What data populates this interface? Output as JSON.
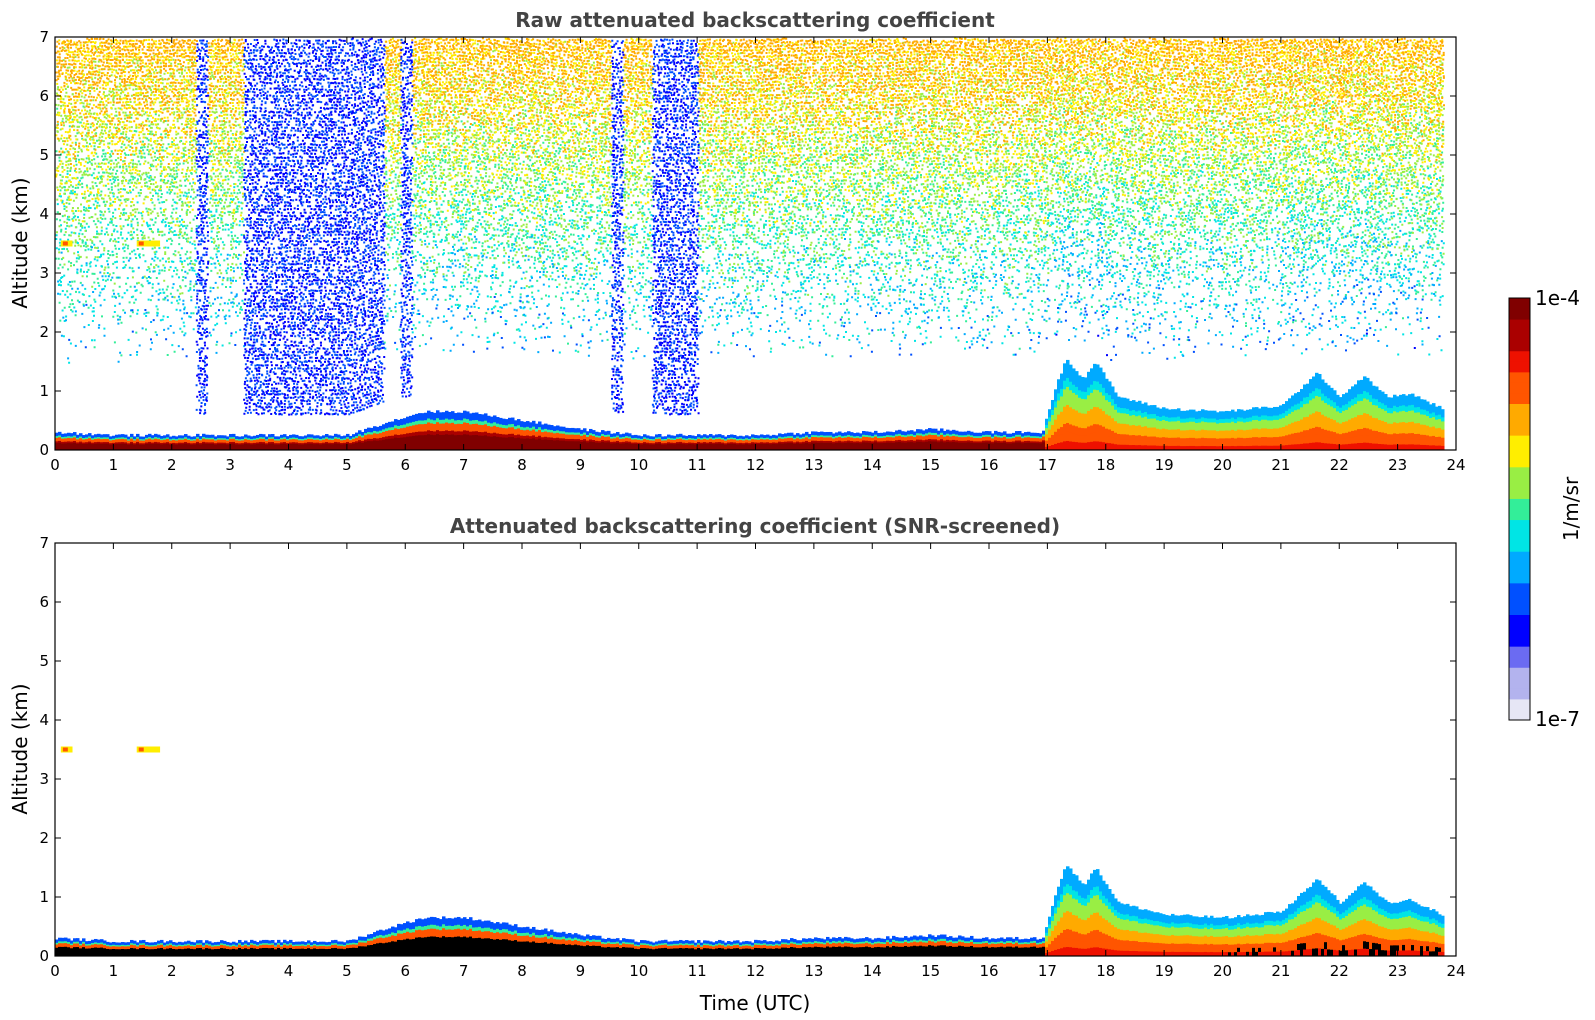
{
  "chart_data": [
    {
      "type": "heatmap",
      "title": "Raw attenuated backscattering coefficient",
      "xlabel": "",
      "ylabel": "Altitude (km)",
      "xlim": [
        0,
        24
      ],
      "ylim": [
        0,
        7
      ],
      "xticks": [
        "0",
        "1",
        "2",
        "3",
        "4",
        "5",
        "6",
        "7",
        "8",
        "9",
        "10",
        "11",
        "12",
        "13",
        "14",
        "15",
        "16",
        "17",
        "18",
        "19",
        "20",
        "21",
        "22",
        "23",
        "24"
      ],
      "yticks": [
        "0",
        "1",
        "2",
        "3",
        "4",
        "5",
        "6",
        "7"
      ],
      "data_end_time": 23.75,
      "boundary_layer_top_km": [
        [
          0,
          0.3
        ],
        [
          1,
          0.25
        ],
        [
          2,
          0.25
        ],
        [
          3,
          0.25
        ],
        [
          4,
          0.25
        ],
        [
          5,
          0.25
        ],
        [
          5.6,
          0.45
        ],
        [
          6.3,
          0.65
        ],
        [
          7,
          0.65
        ],
        [
          8,
          0.5
        ],
        [
          9,
          0.35
        ],
        [
          10,
          0.25
        ],
        [
          11,
          0.25
        ],
        [
          12,
          0.25
        ],
        [
          13,
          0.3
        ],
        [
          14,
          0.3
        ],
        [
          15,
          0.35
        ],
        [
          16,
          0.3
        ],
        [
          16.9,
          0.3
        ],
        [
          17.1,
          1.0
        ],
        [
          17.3,
          1.55
        ],
        [
          17.6,
          1.2
        ],
        [
          17.8,
          1.5
        ],
        [
          18.2,
          0.9
        ],
        [
          19,
          0.7
        ],
        [
          20,
          0.65
        ],
        [
          21,
          0.75
        ],
        [
          21.6,
          1.3
        ],
        [
          22,
          0.9
        ],
        [
          22.4,
          1.25
        ],
        [
          22.8,
          0.9
        ],
        [
          23.2,
          0.95
        ],
        [
          23.75,
          0.7
        ]
      ],
      "elevated_layers": [
        {
          "time_start": 0.1,
          "time_end": 0.3,
          "altitude_km": 3.5
        },
        {
          "time_start": 1.4,
          "time_end": 1.8,
          "altitude_km": 3.5
        }
      ],
      "sparse_blue_bands_utc": [
        [
          3.2,
          5.6
        ],
        [
          10.2,
          11.0
        ],
        [
          2.4,
          2.6
        ],
        [
          5.9,
          6.1
        ],
        [
          9.5,
          9.7
        ]
      ]
    },
    {
      "type": "heatmap",
      "title": "Attenuated backscattering coefficient (SNR-screened)",
      "xlabel": "Time (UTC)",
      "ylabel": "Altitude (km)",
      "xlim": [
        0,
        24
      ],
      "ylim": [
        0,
        7
      ],
      "xticks": [
        "0",
        "1",
        "2",
        "3",
        "4",
        "5",
        "6",
        "7",
        "8",
        "9",
        "10",
        "11",
        "12",
        "13",
        "14",
        "15",
        "16",
        "17",
        "18",
        "19",
        "20",
        "21",
        "22",
        "23",
        "24"
      ],
      "yticks": [
        "0",
        "1",
        "2",
        "3",
        "4",
        "5",
        "6",
        "7"
      ],
      "data_end_time": 23.75,
      "boundary_layer_top_km": [
        [
          0,
          0.3
        ],
        [
          1,
          0.25
        ],
        [
          2,
          0.25
        ],
        [
          3,
          0.25
        ],
        [
          4,
          0.25
        ],
        [
          5,
          0.25
        ],
        [
          5.6,
          0.45
        ],
        [
          6.3,
          0.65
        ],
        [
          7,
          0.65
        ],
        [
          8,
          0.5
        ],
        [
          9,
          0.35
        ],
        [
          10,
          0.25
        ],
        [
          11,
          0.25
        ],
        [
          12,
          0.25
        ],
        [
          13,
          0.3
        ],
        [
          14,
          0.3
        ],
        [
          15,
          0.35
        ],
        [
          16,
          0.3
        ],
        [
          16.9,
          0.3
        ],
        [
          17.1,
          1.0
        ],
        [
          17.3,
          1.55
        ],
        [
          17.6,
          1.2
        ],
        [
          17.8,
          1.5
        ],
        [
          18.2,
          0.9
        ],
        [
          19,
          0.7
        ],
        [
          20,
          0.65
        ],
        [
          21,
          0.75
        ],
        [
          21.6,
          1.3
        ],
        [
          22,
          0.9
        ],
        [
          22.4,
          1.25
        ],
        [
          22.8,
          0.9
        ],
        [
          23.2,
          0.95
        ],
        [
          23.75,
          0.7
        ]
      ],
      "elevated_layers": [
        {
          "time_start": 0.1,
          "time_end": 0.3,
          "altitude_km": 3.5
        },
        {
          "time_start": 1.4,
          "time_end": 1.8,
          "altitude_km": 3.5
        }
      ]
    }
  ],
  "colorbar": {
    "max_label": "1e-4",
    "min_label": "1e-7",
    "unit_label": "1/m/sr",
    "scale": "log",
    "colors": [
      "#e6e6f5",
      "#b3b3ee",
      "#6b6bf2",
      "#0000ff",
      "#0050ff",
      "#00aaff",
      "#00e5e5",
      "#33ee99",
      "#99ee44",
      "#ffee00",
      "#ffaa00",
      "#ff5500",
      "#ee1100",
      "#aa0000",
      "#800000"
    ]
  }
}
